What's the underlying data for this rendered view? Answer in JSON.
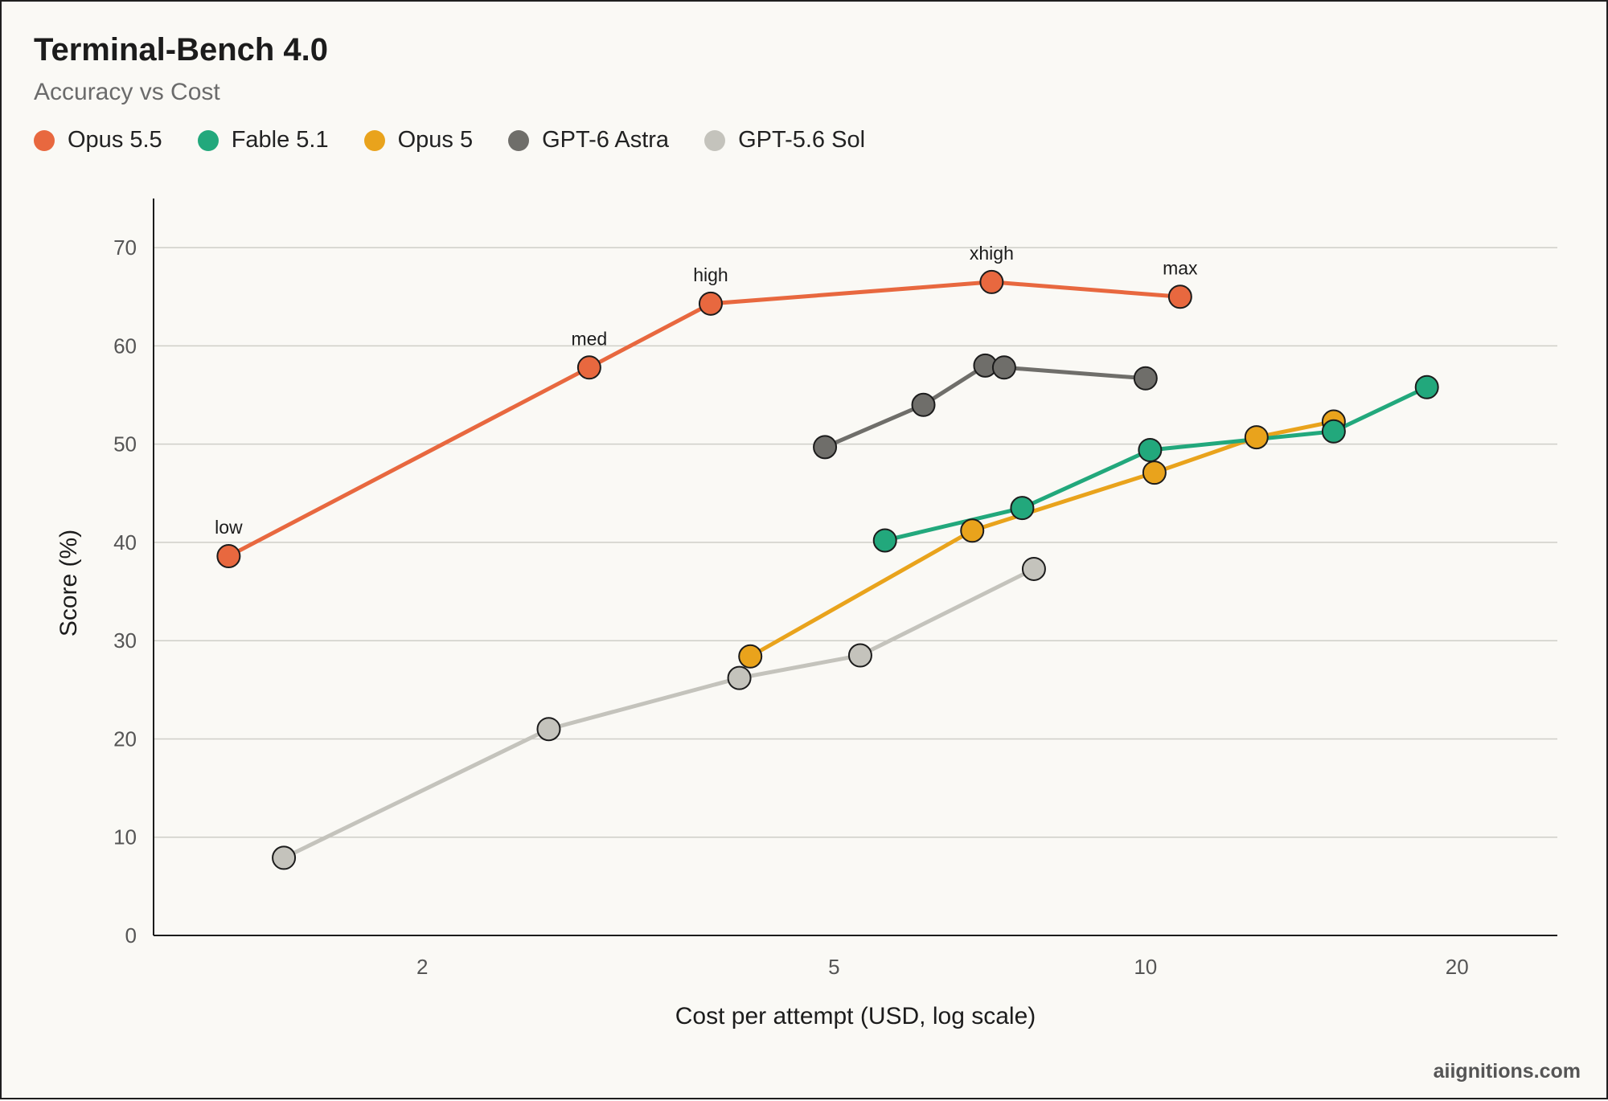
{
  "title": "Terminal-Bench 4.0",
  "subtitle": "Accuracy vs Cost",
  "watermark": "aiignitions.com",
  "chart_data": {
    "type": "line",
    "title": "Terminal-Bench 4.0",
    "subtitle": "Accuracy vs Cost",
    "xlabel": "Cost per attempt (USD, log scale)",
    "ylabel": "Score (%)",
    "x_scale": "log",
    "xlim": [
      1.1,
      25
    ],
    "ylim": [
      0,
      75
    ],
    "x_ticks": [
      2,
      5,
      10,
      20
    ],
    "y_ticks": [
      0,
      10,
      20,
      30,
      40,
      50,
      60,
      70
    ],
    "grid": "horizontal",
    "legend_position": "top-left",
    "series": [
      {
        "name": "Opus 5.5",
        "color": "#e8683f",
        "points": [
          {
            "x": 1.3,
            "y": 38.6,
            "label": "low"
          },
          {
            "x": 2.9,
            "y": 57.8,
            "label": "med"
          },
          {
            "x": 3.8,
            "y": 64.3,
            "label": "high"
          },
          {
            "x": 7.1,
            "y": 66.5,
            "label": "xhigh"
          },
          {
            "x": 10.8,
            "y": 65.0,
            "label": "max"
          }
        ]
      },
      {
        "name": "Fable 5.1",
        "color": "#22a87c",
        "points": [
          {
            "x": 5.6,
            "y": 40.2
          },
          {
            "x": 7.6,
            "y": 43.5
          },
          {
            "x": 10.1,
            "y": 49.4
          },
          {
            "x": 15.2,
            "y": 51.3
          },
          {
            "x": 18.7,
            "y": 55.8
          }
        ]
      },
      {
        "name": "Opus 5",
        "color": "#e9a31c",
        "points": [
          {
            "x": 4.15,
            "y": 28.4
          },
          {
            "x": 6.8,
            "y": 41.2
          },
          {
            "x": 10.2,
            "y": 47.1
          },
          {
            "x": 12.8,
            "y": 50.7
          },
          {
            "x": 15.2,
            "y": 52.3
          }
        ]
      },
      {
        "name": "GPT-6 Astra",
        "color": "#6f6e6a",
        "points": [
          {
            "x": 4.9,
            "y": 49.7
          },
          {
            "x": 6.1,
            "y": 54.0
          },
          {
            "x": 7.0,
            "y": 58.0
          },
          {
            "x": 7.3,
            "y": 57.8
          },
          {
            "x": 10.0,
            "y": 56.7
          }
        ]
      },
      {
        "name": "GPT-5.6 Sol",
        "color": "#c4c3bc",
        "points": [
          {
            "x": 1.47,
            "y": 7.9
          },
          {
            "x": 2.65,
            "y": 21.0
          },
          {
            "x": 4.05,
            "y": 26.2
          },
          {
            "x": 5.3,
            "y": 28.5
          },
          {
            "x": 7.8,
            "y": 37.3
          }
        ]
      }
    ]
  }
}
